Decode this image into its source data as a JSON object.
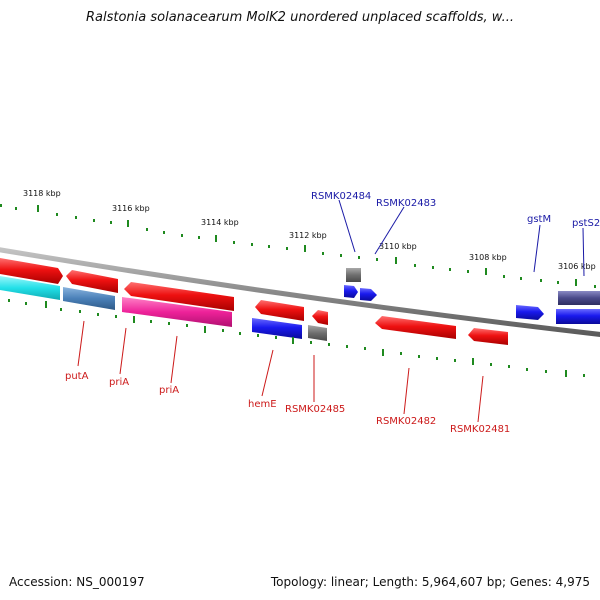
{
  "title": "Ralstonia solanacearum MolK2 unordered unplaced scaffolds, w...",
  "footer": {
    "accession_text": "Accession: NS_000197",
    "summary_text": "Topology: linear; Length: 5,964,607 bp; Genes: 4,975"
  },
  "colors": {
    "backbone": "#8a8a8a",
    "tick": "#1f8a1f",
    "top_label": "#1a1aa6",
    "bottom_label": "#cc1a1a",
    "gene_red": "#ee1111",
    "gene_blue": "#1a1aee",
    "gene_gray": "#6f6f6f",
    "gene_cyan": "#22e0e8",
    "gene_steel": "#4a80b8",
    "gene_magenta": "#ee2299",
    "gene_navy": "#4a4a8a"
  },
  "scale_labels": [
    "3118 kbp",
    "3116 kbp",
    "3114 kbp",
    "3112 kbp",
    "3110 kbp",
    "3108 kbp",
    "3106 kbp"
  ],
  "top_gene_labels": [
    "RSMK02484",
    "RSMK02483",
    "gstM",
    "pstS2"
  ],
  "bottom_gene_labels": [
    "putA",
    "priA",
    "priA",
    "hemE",
    "RSMK02485",
    "RSMK02482",
    "RSMK02481"
  ]
}
